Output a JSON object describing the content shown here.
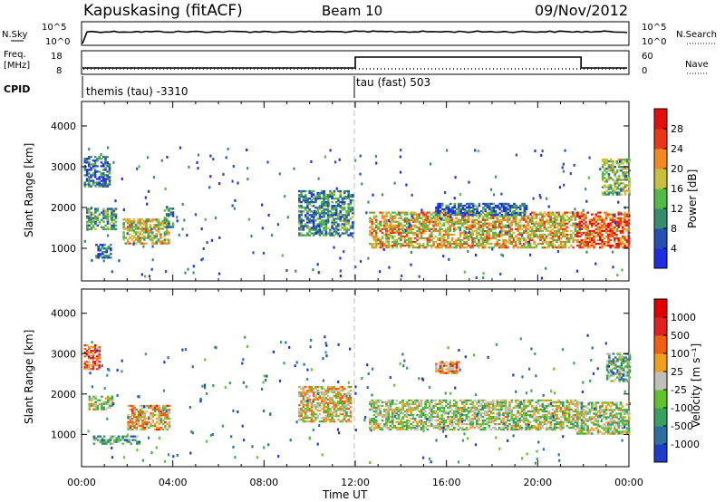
{
  "header": {
    "station": "Kapuskasing (fitACF)",
    "beam": "Beam 10",
    "date": "09/Nov/2012"
  },
  "params": {
    "nsky_label": "N.Sky",
    "nsky_ticks": [
      "10^5",
      "10^0"
    ],
    "nsearch_label": "N.Search",
    "nsearch_ticks": [
      "10^5",
      "10^0"
    ],
    "freq_label_1": "Freq.",
    "freq_label_2": "[MHz]",
    "freq_ticks": [
      "18",
      "8"
    ],
    "nave_label": "Nave",
    "nave_ticks": [
      "60",
      "0"
    ],
    "cpid_label": "CPID",
    "cpid_segments": [
      "themis (tau) -3310",
      "tau (fast) 503"
    ]
  },
  "chart_data": [
    {
      "type": "heatmap",
      "name": "power",
      "ylabel": "Slant Range [km]",
      "ylim": [
        200,
        4600
      ],
      "yticks": [
        "1000",
        "2000",
        "3000",
        "4000"
      ],
      "xlabel": "Time UT",
      "xticks": [
        "00:00",
        "04:00",
        "08:00",
        "12:00",
        "16:00",
        "20:00",
        "00:00"
      ],
      "xlim_hours": [
        0,
        24
      ],
      "colorbar": {
        "label": "Power [dB]",
        "ticks": [
          "4",
          "8",
          "12",
          "16",
          "20",
          "24",
          "28"
        ],
        "colors": [
          "#1e2de0",
          "#2650b0",
          "#3a8c6e",
          "#55b84a",
          "#c8c040",
          "#f08a20",
          "#e83818",
          "#e01010"
        ]
      },
      "regions": [
        {
          "t0": 0.1,
          "t1": 1.2,
          "r0": 2500,
          "r1": 3250,
          "level": 0.25
        },
        {
          "t0": 0.2,
          "t1": 1.5,
          "r0": 1450,
          "r1": 1950,
          "level": 0.35
        },
        {
          "t0": 0.6,
          "t1": 1.3,
          "r0": 750,
          "r1": 1100,
          "level": 0.25
        },
        {
          "t0": 1.8,
          "t1": 3.8,
          "r0": 1100,
          "r1": 1700,
          "level": 0.55
        },
        {
          "t0": 3.6,
          "t1": 4.0,
          "r0": 1500,
          "r1": 2000,
          "level": 0.3
        },
        {
          "t0": 9.5,
          "t1": 11.9,
          "r0": 1300,
          "r1": 2400,
          "level": 0.3
        },
        {
          "t0": 12.6,
          "t1": 21.7,
          "r0": 1000,
          "r1": 1900,
          "level": 0.6
        },
        {
          "t0": 15.5,
          "t1": 19.5,
          "r0": 1800,
          "r1": 2100,
          "level": 0.2
        },
        {
          "t0": 21.7,
          "t1": 24.0,
          "r0": 1000,
          "r1": 1900,
          "level": 0.8
        },
        {
          "t0": 22.8,
          "t1": 24.0,
          "r0": 2300,
          "r1": 3200,
          "level": 0.45
        }
      ]
    },
    {
      "type": "heatmap",
      "name": "velocity",
      "ylabel": "Slant Range [km]",
      "ylim": [
        200,
        4600
      ],
      "yticks": [
        "1000",
        "2000",
        "3000",
        "4000"
      ],
      "xlabel": "Time UT",
      "xticks": [
        "00:00",
        "04:00",
        "08:00",
        "12:00",
        "16:00",
        "20:00",
        "00:00"
      ],
      "xlim_hours": [
        0,
        24
      ],
      "colorbar": {
        "label": "Velocity [m s⁻¹]",
        "ticks": [
          "1000",
          "500",
          "100",
          "25",
          "-25",
          "-100",
          "-500",
          "-1000"
        ],
        "colors": [
          "#1e3cc8",
          "#2e6ea0",
          "#3aa060",
          "#60c030",
          "#c0c0b8",
          "#f0a020",
          "#f06010",
          "#e02020",
          "#e00000"
        ]
      },
      "regions": [
        {
          "t0": 0.3,
          "t1": 1.3,
          "r0": 1600,
          "r1": 1950,
          "level": 0.45
        },
        {
          "t0": 0.1,
          "t1": 0.8,
          "r0": 2600,
          "r1": 3200,
          "level": 0.7
        },
        {
          "t0": 0.5,
          "t1": 2.5,
          "r0": 750,
          "r1": 950,
          "level": 0.3
        },
        {
          "t0": 2.0,
          "t1": 3.8,
          "r0": 1100,
          "r1": 1700,
          "level": 0.6
        },
        {
          "t0": 9.5,
          "t1": 11.8,
          "r0": 1300,
          "r1": 2200,
          "level": 0.55
        },
        {
          "t0": 12.6,
          "t1": 21.7,
          "r0": 1100,
          "r1": 1850,
          "level": 0.45
        },
        {
          "t0": 21.7,
          "t1": 24.0,
          "r0": 1000,
          "r1": 1800,
          "level": 0.45
        },
        {
          "t0": 23.0,
          "t1": 24.0,
          "r0": 2300,
          "r1": 3000,
          "level": 0.35
        },
        {
          "t0": 15.5,
          "t1": 16.5,
          "r0": 2500,
          "r1": 2800,
          "level": 0.65
        }
      ]
    }
  ]
}
